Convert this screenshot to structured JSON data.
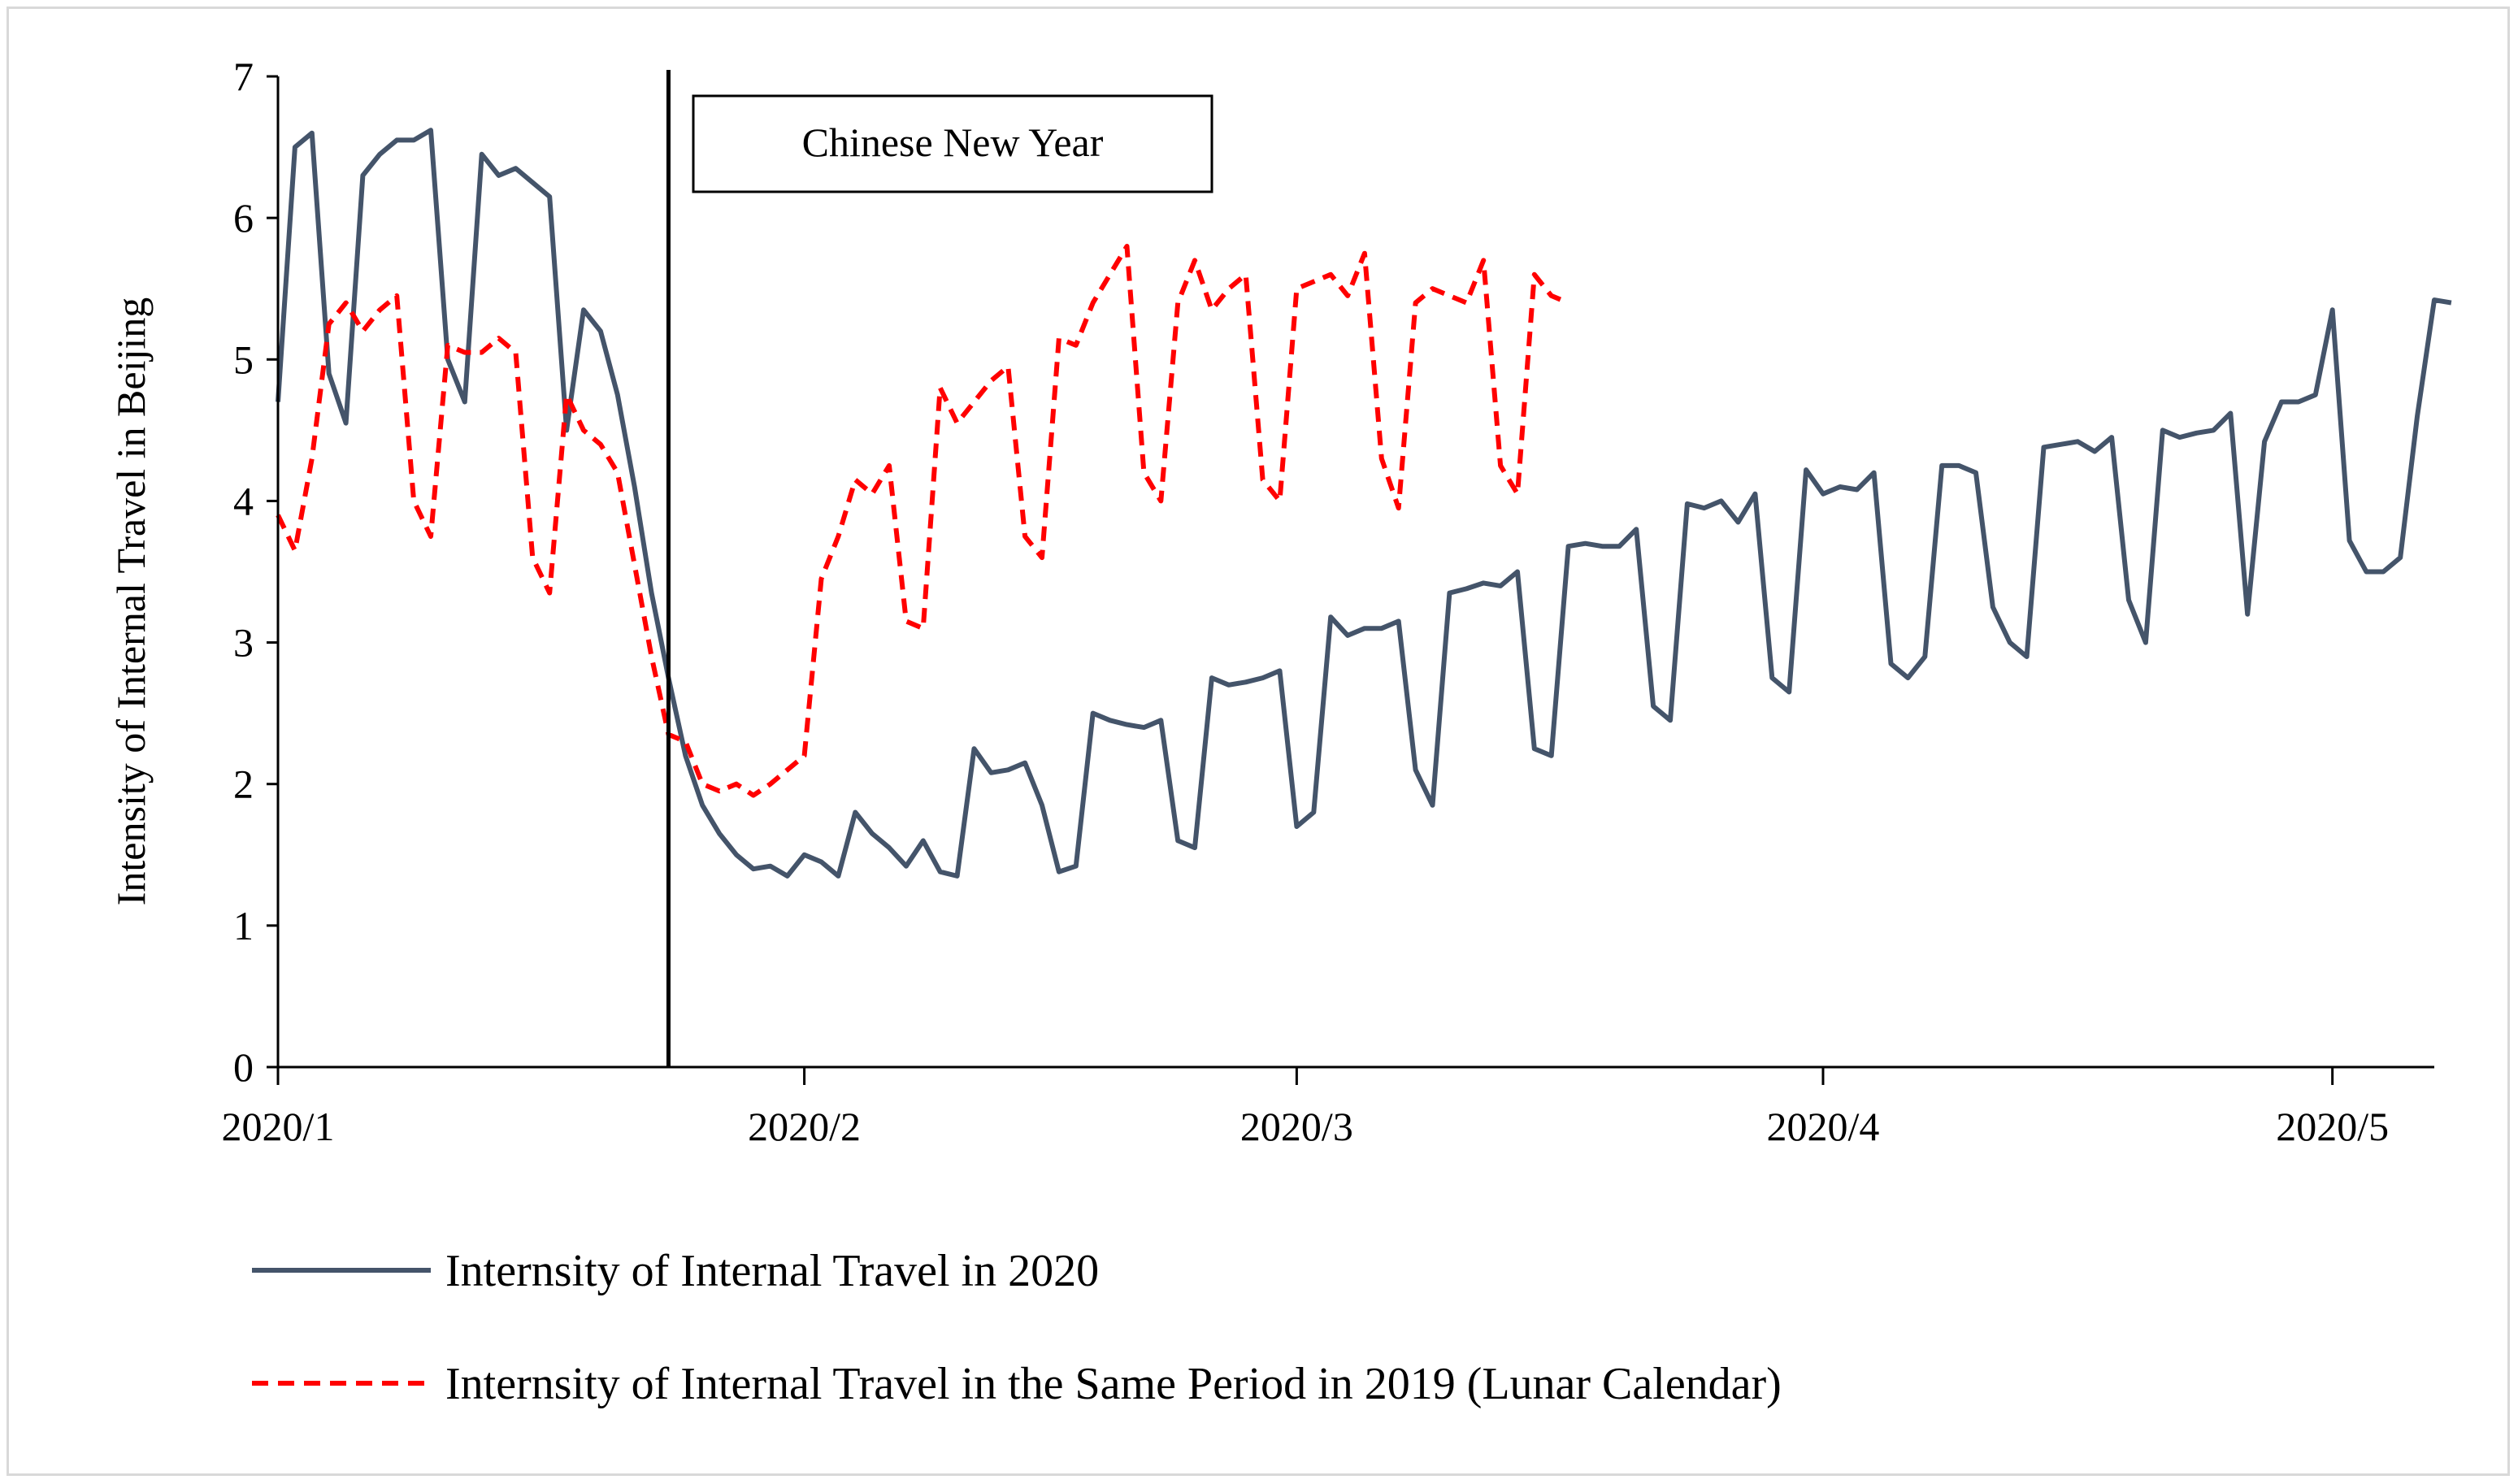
{
  "chart_data": {
    "type": "line",
    "title": "",
    "xlabel": "",
    "ylabel": "Intensity of Internal Travel in Beijing",
    "ylim": [
      0,
      7
    ],
    "yticks": [
      "0",
      "1",
      "2",
      "3",
      "4",
      "5",
      "6",
      "7"
    ],
    "x_range_days": [
      0,
      127
    ],
    "xticks": [
      {
        "label": "2020/1",
        "day": 0
      },
      {
        "label": "2020/2",
        "day": 31
      },
      {
        "label": "2020/3",
        "day": 60
      },
      {
        "label": "2020/4",
        "day": 91
      },
      {
        "label": "2020/5",
        "day": 121
      }
    ],
    "annotation": {
      "label": "Chinese New Year",
      "day": 23
    },
    "series": [
      {
        "name": "Internsity of Internal Travel in 2020",
        "color": "#44546a",
        "style": "solid",
        "values": [
          4.7,
          6.5,
          6.6,
          4.9,
          4.55,
          6.3,
          6.45,
          6.55,
          6.55,
          6.62,
          5.0,
          4.7,
          6.45,
          6.3,
          6.35,
          6.25,
          6.15,
          4.5,
          5.35,
          5.2,
          4.75,
          4.1,
          3.35,
          2.75,
          2.2,
          1.85,
          1.65,
          1.5,
          1.4,
          1.42,
          1.35,
          1.5,
          1.45,
          1.35,
          1.8,
          1.65,
          1.55,
          1.42,
          1.6,
          1.38,
          1.35,
          2.25,
          2.08,
          2.1,
          2.15,
          1.85,
          1.38,
          1.42,
          2.5,
          2.45,
          2.42,
          2.4,
          2.45,
          1.6,
          1.55,
          2.75,
          2.7,
          2.72,
          2.75,
          2.8,
          1.7,
          1.8,
          3.18,
          3.05,
          3.1,
          3.1,
          3.15,
          2.1,
          1.85,
          3.35,
          3.38,
          3.42,
          3.4,
          3.5,
          2.25,
          2.2,
          3.68,
          3.7,
          3.68,
          3.68,
          3.8,
          2.55,
          2.45,
          3.98,
          3.95,
          4.0,
          3.85,
          4.05,
          2.75,
          2.65,
          4.22,
          4.05,
          4.1,
          4.08,
          4.2,
          2.85,
          2.75,
          2.9,
          4.25,
          4.25,
          4.2,
          3.25,
          3.0,
          2.9,
          4.38,
          4.4,
          4.42,
          4.35,
          4.45,
          3.3,
          3.0,
          4.5,
          4.45,
          4.48,
          4.5,
          4.62,
          3.2,
          4.42,
          4.7,
          4.7,
          4.75,
          5.35,
          3.72,
          3.5,
          3.5,
          3.6,
          4.6,
          5.42,
          5.4
        ]
      },
      {
        "name": "Internsity of Internal Travel in the Same Period in 2019 (Lunar Calendar)",
        "color": "#ff0000",
        "style": "dashed",
        "values": [
          3.9,
          3.65,
          4.3,
          5.25,
          5.4,
          5.2,
          5.35,
          5.45,
          4.0,
          3.75,
          5.1,
          5.05,
          5.05,
          5.15,
          5.05,
          3.6,
          3.35,
          4.75,
          4.5,
          4.4,
          4.2,
          3.55,
          2.9,
          2.35,
          2.3,
          2.0,
          1.95,
          2.0,
          1.92,
          2.0,
          2.1,
          2.2,
          3.45,
          3.75,
          4.15,
          4.05,
          4.25,
          3.15,
          3.1,
          4.8,
          4.55,
          4.7,
          4.85,
          4.95,
          3.75,
          3.6,
          5.15,
          5.1,
          5.4,
          5.6,
          5.8,
          4.2,
          4.0,
          5.4,
          5.7,
          5.35,
          5.5,
          5.6,
          4.15,
          4.0,
          5.5,
          5.55,
          5.6,
          5.45,
          5.75,
          4.3,
          3.95,
          5.4,
          5.5,
          5.45,
          5.4,
          5.7,
          4.25,
          4.05,
          5.6,
          5.45,
          5.4
        ]
      }
    ]
  }
}
